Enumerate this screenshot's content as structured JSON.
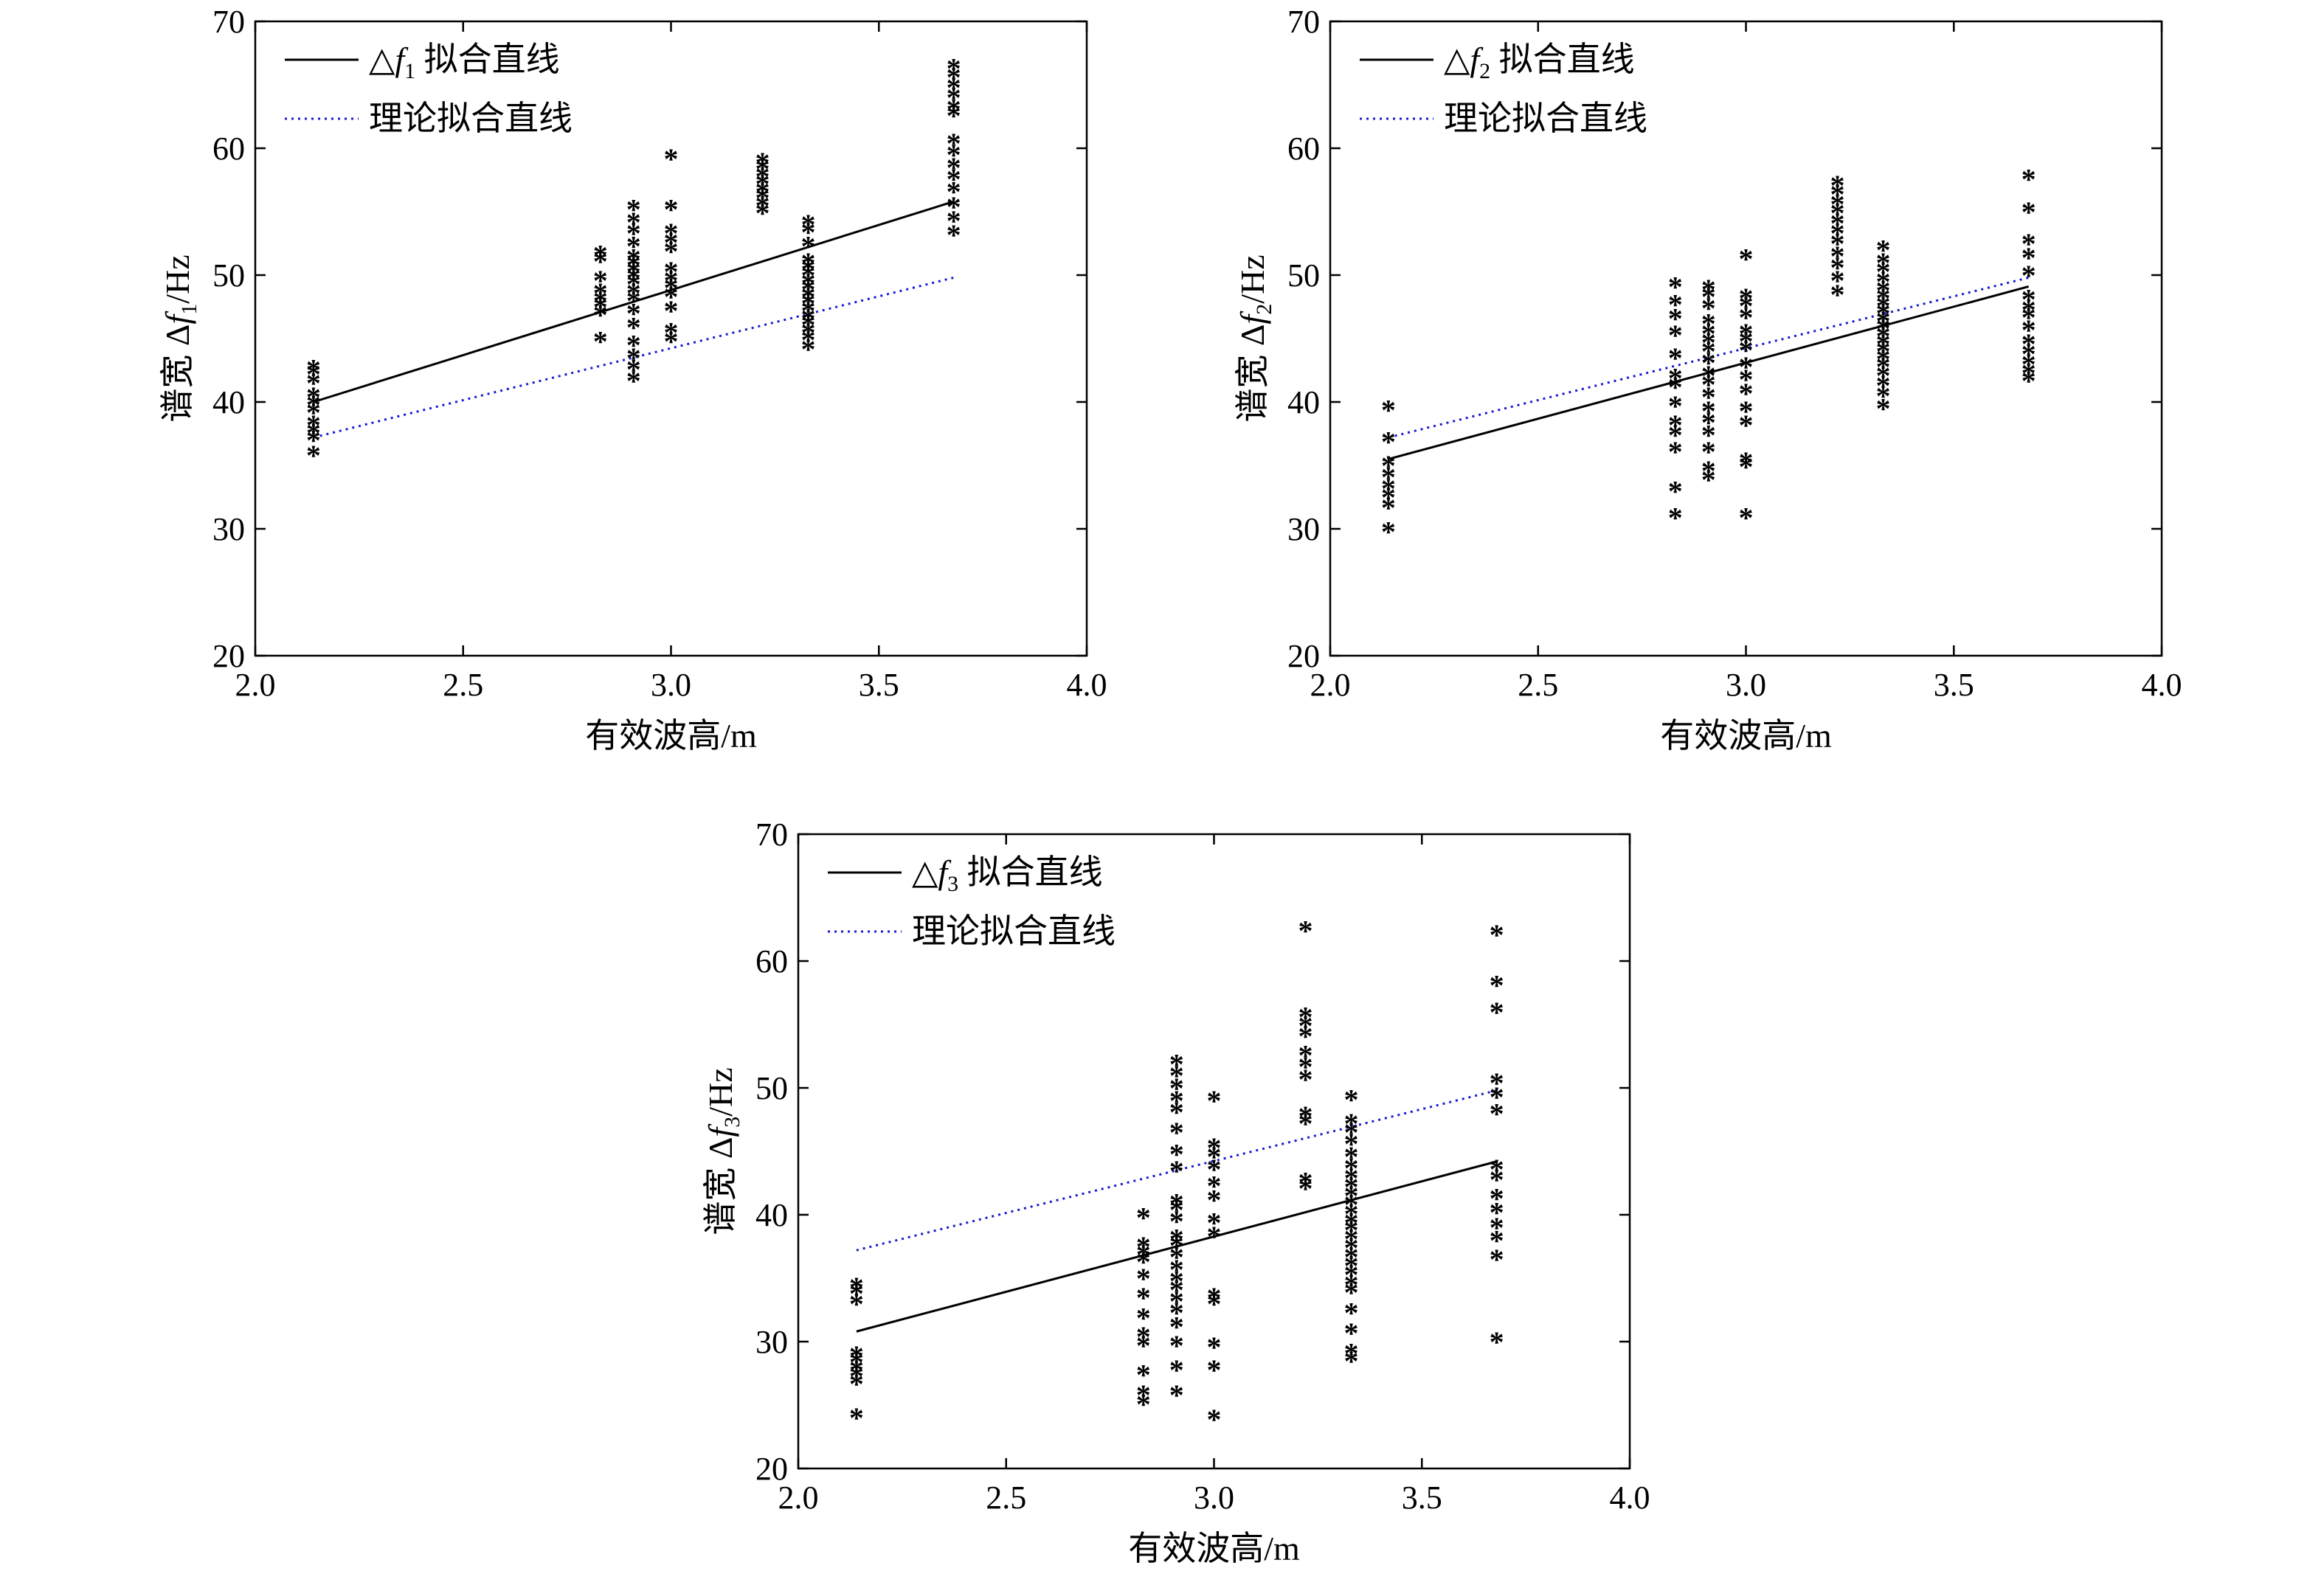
{
  "colors": {
    "fit": "#000000",
    "theory": "#1a1ad0",
    "points": "#000000"
  },
  "chart_data": [
    {
      "type": "scatter",
      "ylabel": "谱宽 Δf1/Hz",
      "ylabel_parts": {
        "prefix": "谱宽 Δ",
        "var": "f",
        "sub": "1",
        "suffix": "/Hz"
      },
      "xlabel": "有效波高/m",
      "xlim": [
        2.0,
        4.0
      ],
      "ylim": [
        20,
        70
      ],
      "xticks": [
        "2.0",
        "2.5",
        "3.0",
        "3.5",
        "4.0"
      ],
      "yticks": [
        "20",
        "30",
        "40",
        "50",
        "60",
        "70"
      ],
      "grid": false,
      "legend_position": "top-left",
      "legend": [
        {
          "kind": "fit",
          "symbol": "△",
          "var": "f",
          "sub": "1",
          "text": "拟合直线"
        },
        {
          "kind": "theory",
          "text": "理论拟合直线"
        }
      ],
      "fit_line": {
        "x": [
          2.14,
          3.68
        ],
        "y": [
          40.0,
          55.8
        ]
      },
      "theory_line": {
        "x": [
          2.14,
          3.68
        ],
        "y": [
          37.2,
          49.8
        ]
      },
      "points": {
        "x": [
          2.14,
          2.83,
          2.91,
          3.0,
          3.22,
          3.33,
          3.68
        ],
        "y": [
          [
            35.8,
            37.0,
            37.6,
            38.2,
            39.2,
            39.8,
            40.4,
            41.5,
            42.2,
            42.6
          ],
          [
            44.8,
            46.9,
            47.5,
            48.0,
            48.6,
            49.6,
            51.1,
            51.6
          ],
          [
            41.7,
            42.6,
            43.5,
            44.5,
            45.9,
            47.0,
            48.0,
            48.6,
            49.3,
            49.8,
            50.3,
            50.8,
            51.3,
            52.3,
            53.3,
            54.2,
            55.2
          ],
          [
            44.8,
            45.5,
            47.2,
            48.3,
            49.0,
            49.6,
            50.3,
            51.9,
            52.6,
            53.3,
            55.2,
            59.2
          ],
          [
            54.9,
            55.5,
            56.1,
            56.6,
            57.2,
            57.8,
            58.4,
            58.9
          ],
          [
            44.2,
            44.9,
            45.5,
            46.1,
            46.6,
            47.2,
            47.8,
            48.3,
            48.9,
            49.4,
            50.0,
            50.5,
            51.0,
            52.3,
            53.4,
            54.0
          ],
          [
            53.2,
            54.3,
            55.4,
            56.6,
            57.6,
            58.5,
            59.5,
            60.4,
            62.6,
            63.1,
            64.0,
            64.8,
            65.6,
            66.3
          ]
        ]
      }
    },
    {
      "type": "scatter",
      "ylabel": "谱宽 Δf2/Hz",
      "ylabel_parts": {
        "prefix": "谱宽 Δ",
        "var": "f",
        "sub": "2",
        "suffix": "/Hz"
      },
      "xlabel": "有效波高/m",
      "xlim": [
        2.0,
        4.0
      ],
      "ylim": [
        20,
        70
      ],
      "xticks": [
        "2.0",
        "2.5",
        "3.0",
        "3.5",
        "4.0"
      ],
      "yticks": [
        "20",
        "30",
        "40",
        "50",
        "60",
        "70"
      ],
      "grid": false,
      "legend_position": "top-left",
      "legend": [
        {
          "kind": "fit",
          "symbol": "△",
          "var": "f",
          "sub": "2",
          "text": "拟合直线"
        },
        {
          "kind": "theory",
          "text": "理论拟合直线"
        }
      ],
      "fit_line": {
        "x": [
          2.14,
          3.68
        ],
        "y": [
          35.5,
          49.1
        ]
      },
      "theory_line": {
        "x": [
          2.14,
          3.68
        ],
        "y": [
          37.2,
          49.8
        ]
      },
      "points": {
        "x": [
          2.14,
          2.83,
          2.91,
          3.0,
          3.22,
          3.33,
          3.68
        ],
        "y": [
          [
            29.8,
            31.7,
            32.5,
            33.2,
            34.1,
            35.0,
            36.9,
            39.4
          ],
          [
            30.9,
            33.0,
            36.1,
            37.4,
            38.2,
            39.7,
            41.2,
            41.9,
            43.5,
            45.3,
            46.6,
            47.7,
            49.1
          ],
          [
            33.9,
            34.6,
            36.1,
            37.4,
            38.4,
            39.3,
            40.4,
            41.4,
            42.1,
            43.1,
            44.0,
            44.7,
            45.4,
            46.2,
            47.4,
            48.3,
            48.9
          ],
          [
            30.9,
            34.9,
            35.3,
            38.2,
            39.3,
            40.7,
            41.8,
            42.8,
            44.1,
            44.8,
            45.4,
            46.7,
            47.6,
            48.2,
            51.3
          ],
          [
            48.5,
            49.6,
            50.6,
            51.5,
            52.5,
            53.3,
            54.1,
            54.9,
            55.6,
            56.4,
            57.1
          ],
          [
            39.5,
            40.5,
            41.3,
            42.1,
            42.8,
            43.4,
            44.0,
            44.6,
            45.2,
            45.8,
            46.4,
            47.0,
            47.6,
            48.2,
            48.8,
            49.5,
            50.3,
            51.0,
            52.0
          ],
          [
            41.7,
            42.3,
            43.0,
            43.8,
            44.6,
            45.7,
            46.7,
            47.3,
            48.1,
            50.0,
            51.4,
            52.5,
            55.0,
            57.6
          ]
        ]
      }
    },
    {
      "type": "scatter",
      "ylabel": "谱宽 Δf3/Hz",
      "ylabel_parts": {
        "prefix": "谱宽 Δ",
        "var": "f",
        "sub": "3",
        "suffix": "/Hz"
      },
      "xlabel": "有效波高/m",
      "xlim": [
        2.0,
        4.0
      ],
      "ylim": [
        20,
        70
      ],
      "xticks": [
        "2.0",
        "2.5",
        "3.0",
        "3.5",
        "4.0"
      ],
      "yticks": [
        "20",
        "30",
        "40",
        "50",
        "60",
        "70"
      ],
      "grid": false,
      "legend_position": "top-left",
      "legend": [
        {
          "kind": "fit",
          "symbol": "△",
          "var": "f",
          "sub": "3",
          "text": "拟合直线"
        },
        {
          "kind": "theory",
          "text": "理论拟合直线"
        }
      ],
      "fit_line": {
        "x": [
          2.14,
          3.68
        ],
        "y": [
          30.8,
          44.2
        ]
      },
      "theory_line": {
        "x": [
          2.14,
          3.68
        ],
        "y": [
          37.2,
          49.8
        ]
      },
      "points": {
        "x": [
          2.14,
          2.83,
          2.91,
          3.0,
          3.22,
          3.33,
          3.68
        ],
        "y": [
          [
            24.0,
            26.7,
            27.3,
            27.8,
            28.4,
            28.9,
            33.0,
            33.8,
            34.3
          ],
          [
            25.1,
            25.8,
            27.4,
            29.7,
            30.4,
            31.9,
            33.5,
            35.0,
            36.3,
            36.9,
            37.5,
            39.8
          ],
          [
            25.8,
            27.8,
            29.7,
            31.2,
            32.3,
            33.2,
            34.1,
            34.8,
            35.7,
            36.7,
            37.6,
            38.1,
            39.5,
            40.4,
            40.9,
            43.5,
            44.8,
            46.5,
            48.1,
            49.0,
            50.0,
            51.0,
            51.9
          ],
          [
            23.9,
            27.8,
            29.6,
            33.0,
            33.5,
            38.3,
            39.4,
            41.2,
            42.3,
            43.6,
            44.6,
            45.3,
            49.0
          ],
          [
            42.1,
            42.6,
            47.2,
            47.8,
            50.7,
            51.7,
            52.6,
            54.1,
            54.9,
            55.6,
            62.4
          ],
          [
            28.5,
            29.1,
            30.7,
            32.3,
            33.9,
            34.5,
            35.3,
            36.0,
            36.7,
            37.4,
            38.1,
            38.8,
            39.4,
            40.1,
            40.8,
            41.5,
            42.2,
            42.9,
            43.7,
            44.6,
            45.6,
            46.5,
            47.2,
            49.1
          ],
          [
            30.0,
            36.5,
            38.0,
            39.0,
            40.2,
            41.3,
            42.8,
            43.6,
            48.0,
            49.3,
            50.4,
            56.0,
            58.1,
            62.1
          ]
        ]
      }
    }
  ]
}
